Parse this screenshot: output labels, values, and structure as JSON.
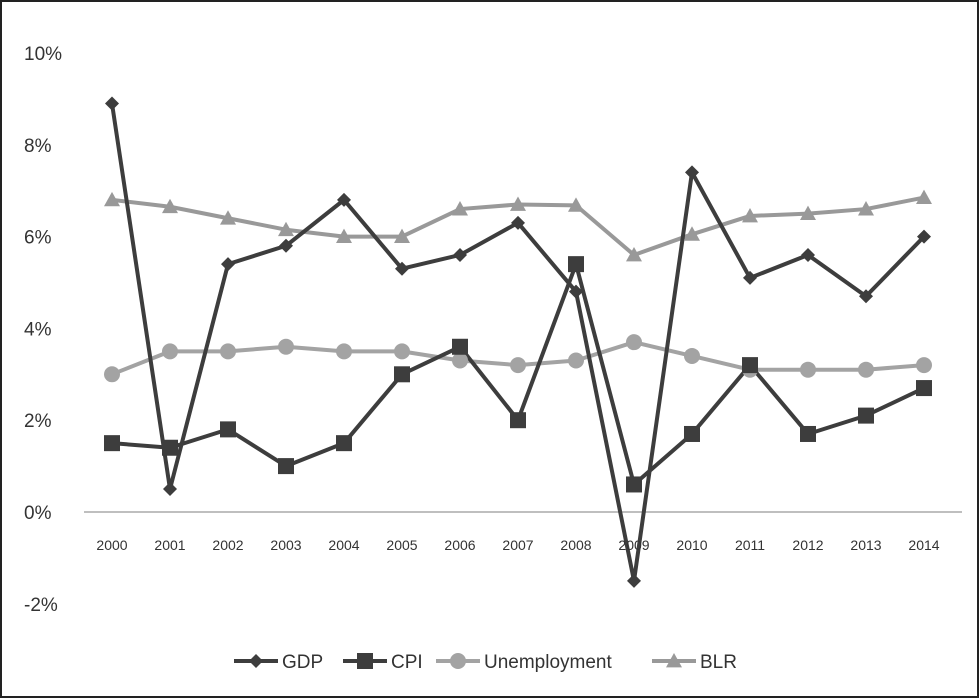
{
  "chart_data": {
    "type": "line",
    "title": "",
    "xlabel": "",
    "ylabel": "",
    "categories": [
      "2000",
      "2001",
      "2002",
      "2003",
      "2004",
      "2005",
      "2006",
      "2007",
      "2008",
      "2009",
      "2010",
      "2011",
      "2012",
      "2013",
      "2014"
    ],
    "ylim": [
      -0.03,
      0.1
    ],
    "yticks": [
      -0.02,
      0.0,
      0.02,
      0.04,
      0.06,
      0.08,
      0.1
    ],
    "ytick_labels": [
      "-2%",
      "0%",
      "2%",
      "4%",
      "6%",
      "8%",
      "10%"
    ],
    "grid": false,
    "legend_position": "bottom",
    "series": [
      {
        "name": "GDP",
        "marker": "diamond",
        "color": "#3d3d3d",
        "values": [
          0.089,
          0.005,
          0.054,
          0.058,
          0.068,
          0.053,
          0.056,
          0.063,
          0.048,
          -0.015,
          0.074,
          0.051,
          0.056,
          0.047,
          0.06
        ]
      },
      {
        "name": "CPI",
        "marker": "square",
        "color": "#3d3d3d",
        "values": [
          0.015,
          0.014,
          0.018,
          0.01,
          0.015,
          0.03,
          0.036,
          0.02,
          0.054,
          0.006,
          0.017,
          0.032,
          0.017,
          0.021,
          0.027
        ]
      },
      {
        "name": "Unemployment",
        "marker": "circle",
        "color": "#a3a3a3",
        "values": [
          0.03,
          0.035,
          0.035,
          0.036,
          0.035,
          0.035,
          0.033,
          0.032,
          0.033,
          0.037,
          0.034,
          0.031,
          0.031,
          0.031,
          0.032
        ]
      },
      {
        "name": "BLR",
        "marker": "triangle",
        "color": "#999999",
        "values": [
          0.068,
          0.0665,
          0.064,
          0.0615,
          0.06,
          0.06,
          0.066,
          0.067,
          0.0668,
          0.056,
          0.0605,
          0.0645,
          0.065,
          0.066,
          0.0685
        ]
      }
    ]
  }
}
